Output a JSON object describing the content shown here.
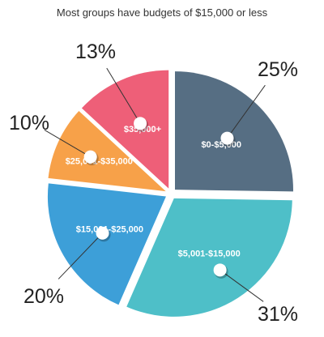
{
  "chart_data": {
    "type": "pie",
    "title": "Most groups have budgets of $15,000 or less",
    "categories": [
      "$0-$5,000",
      "$5,001-$15,000",
      "$15,001-$25,000",
      "$25,001-$35,000",
      "$35,000+"
    ],
    "values": [
      25,
      31,
      20,
      10,
      13
    ],
    "value_labels": [
      "25%",
      "31%",
      "20%",
      "10%",
      "13%"
    ],
    "colors": [
      "#566e83",
      "#4ebfc8",
      "#3d9fd8",
      "#f7a149",
      "#ee5f78"
    ],
    "exploded": true,
    "legend": "none"
  }
}
